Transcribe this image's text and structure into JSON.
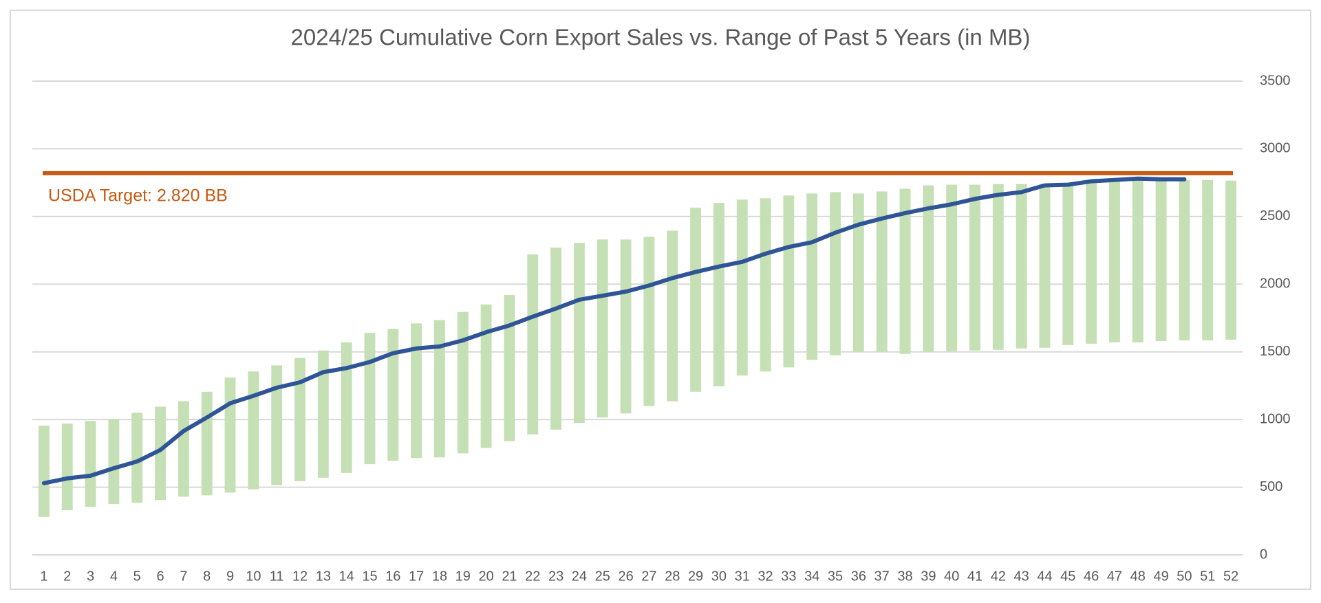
{
  "chart_data": {
    "type": "range-bar-line",
    "title": "2024/25 Cumulative Corn Export Sales vs. Range of Past 5 Years (in MB)",
    "categories": [
      1,
      2,
      3,
      4,
      5,
      6,
      7,
      8,
      9,
      10,
      11,
      12,
      13,
      14,
      15,
      16,
      17,
      18,
      19,
      20,
      21,
      22,
      23,
      24,
      25,
      26,
      27,
      28,
      29,
      30,
      31,
      32,
      33,
      34,
      35,
      36,
      37,
      38,
      39,
      40,
      41,
      42,
      43,
      44,
      45,
      46,
      47,
      48,
      49,
      50,
      51,
      52
    ],
    "range": {
      "color": "#c5e0b4",
      "low": [
        280,
        330,
        355,
        375,
        385,
        405,
        430,
        440,
        460,
        485,
        515,
        545,
        570,
        605,
        670,
        695,
        715,
        720,
        750,
        790,
        840,
        890,
        925,
        975,
        1015,
        1045,
        1100,
        1135,
        1205,
        1245,
        1325,
        1355,
        1385,
        1440,
        1475,
        1500,
        1500,
        1485,
        1500,
        1505,
        1510,
        1515,
        1525,
        1530,
        1550,
        1560,
        1570,
        1570,
        1580,
        1585,
        1585,
        1590
      ],
      "high": [
        955,
        970,
        990,
        1005,
        1050,
        1095,
        1135,
        1205,
        1310,
        1355,
        1400,
        1455,
        1510,
        1570,
        1640,
        1670,
        1710,
        1735,
        1795,
        1850,
        1920,
        2220,
        2270,
        2305,
        2330,
        2330,
        2350,
        2395,
        2565,
        2600,
        2625,
        2635,
        2655,
        2670,
        2680,
        2670,
        2685,
        2705,
        2730,
        2735,
        2735,
        2740,
        2740,
        2740,
        2745,
        2760,
        2760,
        2765,
        2770,
        2770,
        2770,
        2765
      ]
    },
    "line": {
      "color": "#2f5597",
      "values": [
        530,
        565,
        585,
        640,
        690,
        775,
        915,
        1015,
        1120,
        1175,
        1235,
        1275,
        1350,
        1380,
        1425,
        1490,
        1525,
        1540,
        1585,
        1645,
        1695,
        1760,
        1820,
        1885,
        1915,
        1945,
        1990,
        2045,
        2090,
        2130,
        2165,
        2225,
        2275,
        2310,
        2380,
        2440,
        2485,
        2525,
        2560,
        2590,
        2630,
        2660,
        2680,
        2730,
        2735,
        2760,
        2770,
        2780,
        2775,
        2775
      ]
    },
    "target": {
      "value": 2820,
      "label": "USDA Target: 2.820 BB",
      "color": "#c55a11"
    },
    "ylim": [
      0,
      3500
    ],
    "yticks": [
      0,
      500,
      1000,
      1500,
      2000,
      2500,
      3000,
      3500
    ],
    "grid": true
  }
}
